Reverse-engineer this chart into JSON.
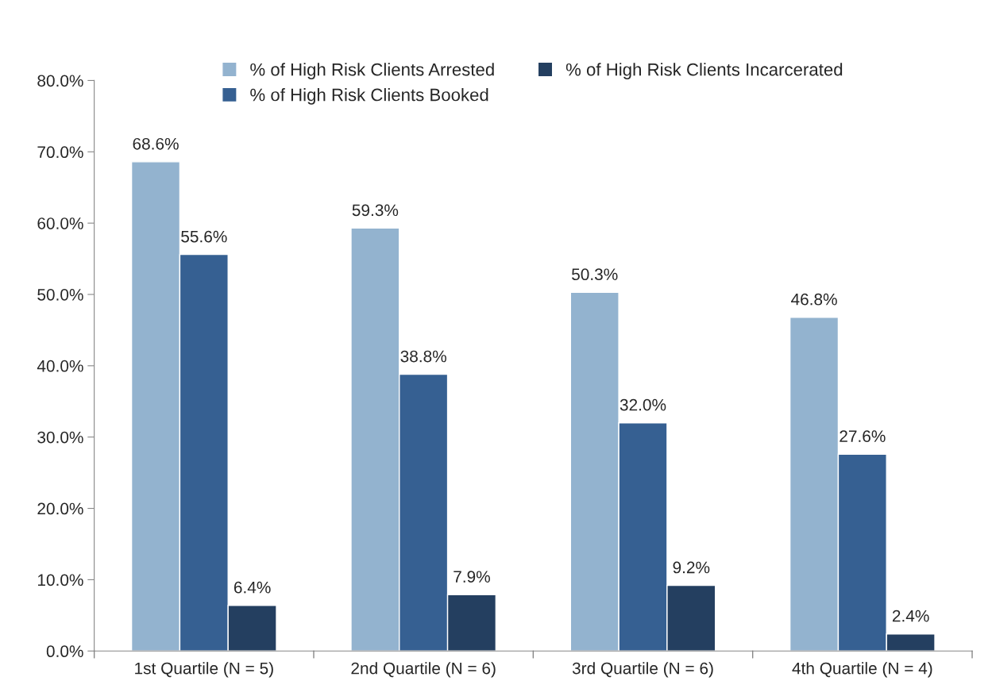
{
  "chart_data": {
    "type": "bar",
    "categories": [
      "1st Quartile (N = 5)",
      "2nd Quartile (N = 6)",
      "3rd Quartile (N = 6)",
      "4th Quartile (N = 4)"
    ],
    "series": [
      {
        "name": "% of High Risk Clients Arrested",
        "color": "#93b3cf",
        "values": [
          68.6,
          59.3,
          50.3,
          46.8
        ],
        "value_labels": [
          "68.6%",
          "59.3%",
          "50.3%",
          "46.8%"
        ]
      },
      {
        "name": "% of High Risk Clients Booked",
        "color": "#366092",
        "values": [
          55.6,
          38.8,
          32.0,
          27.6
        ],
        "value_labels": [
          "55.6%",
          "38.8%",
          "32.0%",
          "27.6%"
        ]
      },
      {
        "name": "% of High Risk Clients Incarcerated",
        "color": "#243f60",
        "values": [
          6.4,
          7.9,
          9.2,
          2.4
        ],
        "value_labels": [
          "6.4%",
          "7.9%",
          "9.2%",
          "2.4%"
        ]
      }
    ],
    "ylim": [
      0,
      80
    ],
    "yticks": [
      {
        "value": 0,
        "label": "0.0%"
      },
      {
        "value": 10,
        "label": "10.0%"
      },
      {
        "value": 20,
        "label": "20.0%"
      },
      {
        "value": 30,
        "label": "30.0%"
      },
      {
        "value": 40,
        "label": "40.0%"
      },
      {
        "value": 50,
        "label": "50.0%"
      },
      {
        "value": 60,
        "label": "60.0%"
      },
      {
        "value": 70,
        "label": "70.0%"
      },
      {
        "value": 80,
        "label": "80.0%"
      }
    ],
    "grid": false,
    "legend": "top"
  }
}
